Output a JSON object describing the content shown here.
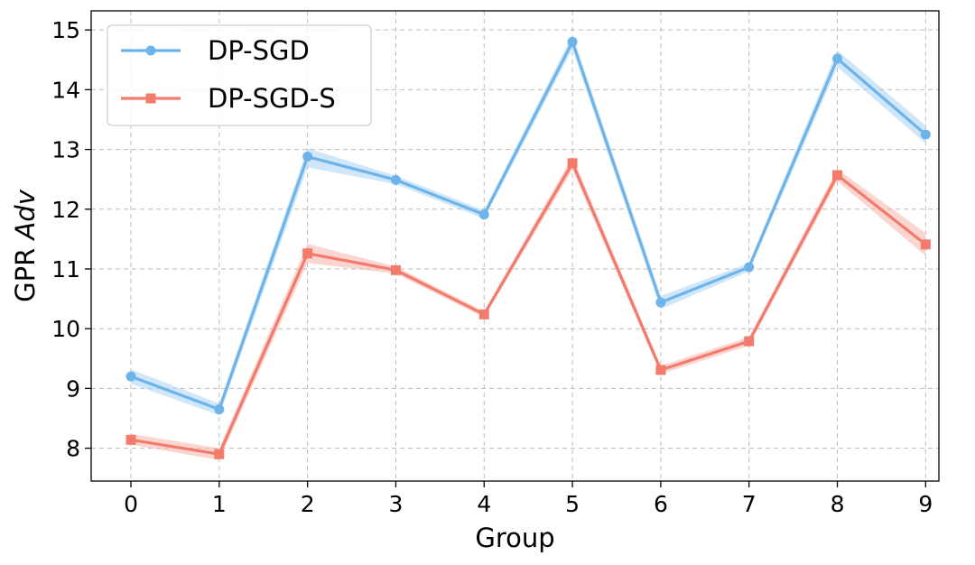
{
  "chart_data": {
    "type": "line",
    "xlabel": "Group",
    "ylabel_prefix": "GPR ",
    "ylabel_italic": "Adv",
    "x": [
      0,
      1,
      2,
      3,
      4,
      5,
      6,
      7,
      8,
      9
    ],
    "x_tick_labels": [
      "0",
      "1",
      "2",
      "3",
      "4",
      "5",
      "6",
      "7",
      "8",
      "9"
    ],
    "y_ticks": [
      8,
      9,
      10,
      11,
      12,
      13,
      14,
      15
    ],
    "y_tick_labels": [
      "8",
      "9",
      "10",
      "11",
      "12",
      "13",
      "14",
      "15"
    ],
    "xlim": [
      -0.45,
      9.15
    ],
    "ylim": [
      7.45,
      15.32
    ],
    "grid": true,
    "legend_position": "top-left",
    "series": [
      {
        "name": "DP-SGD",
        "color": "#6cb4ea",
        "band_color": "#a9d3f5",
        "marker": "circle",
        "values": [
          9.2,
          8.65,
          12.88,
          12.49,
          11.91,
          14.8,
          10.44,
          11.03,
          14.52,
          13.25
        ],
        "band_lower": [
          9.08,
          8.55,
          12.7,
          12.42,
          11.84,
          14.68,
          10.33,
          10.96,
          14.38,
          13.1
        ],
        "band_upper": [
          9.32,
          8.75,
          13.02,
          12.56,
          11.98,
          14.92,
          10.55,
          11.1,
          14.66,
          13.4
        ]
      },
      {
        "name": "DP-SGD-S",
        "color": "#f27b6c",
        "band_color": "#f7b2aa",
        "marker": "square",
        "values": [
          8.14,
          7.9,
          11.26,
          10.98,
          10.24,
          12.77,
          9.31,
          9.79,
          12.57,
          11.41
        ],
        "band_lower": [
          8.06,
          7.8,
          11.1,
          10.92,
          10.19,
          12.66,
          9.24,
          9.72,
          12.47,
          11.22
        ],
        "band_upper": [
          8.24,
          8.0,
          11.42,
          11.04,
          10.29,
          12.88,
          9.38,
          9.86,
          12.67,
          11.6
        ]
      }
    ]
  }
}
